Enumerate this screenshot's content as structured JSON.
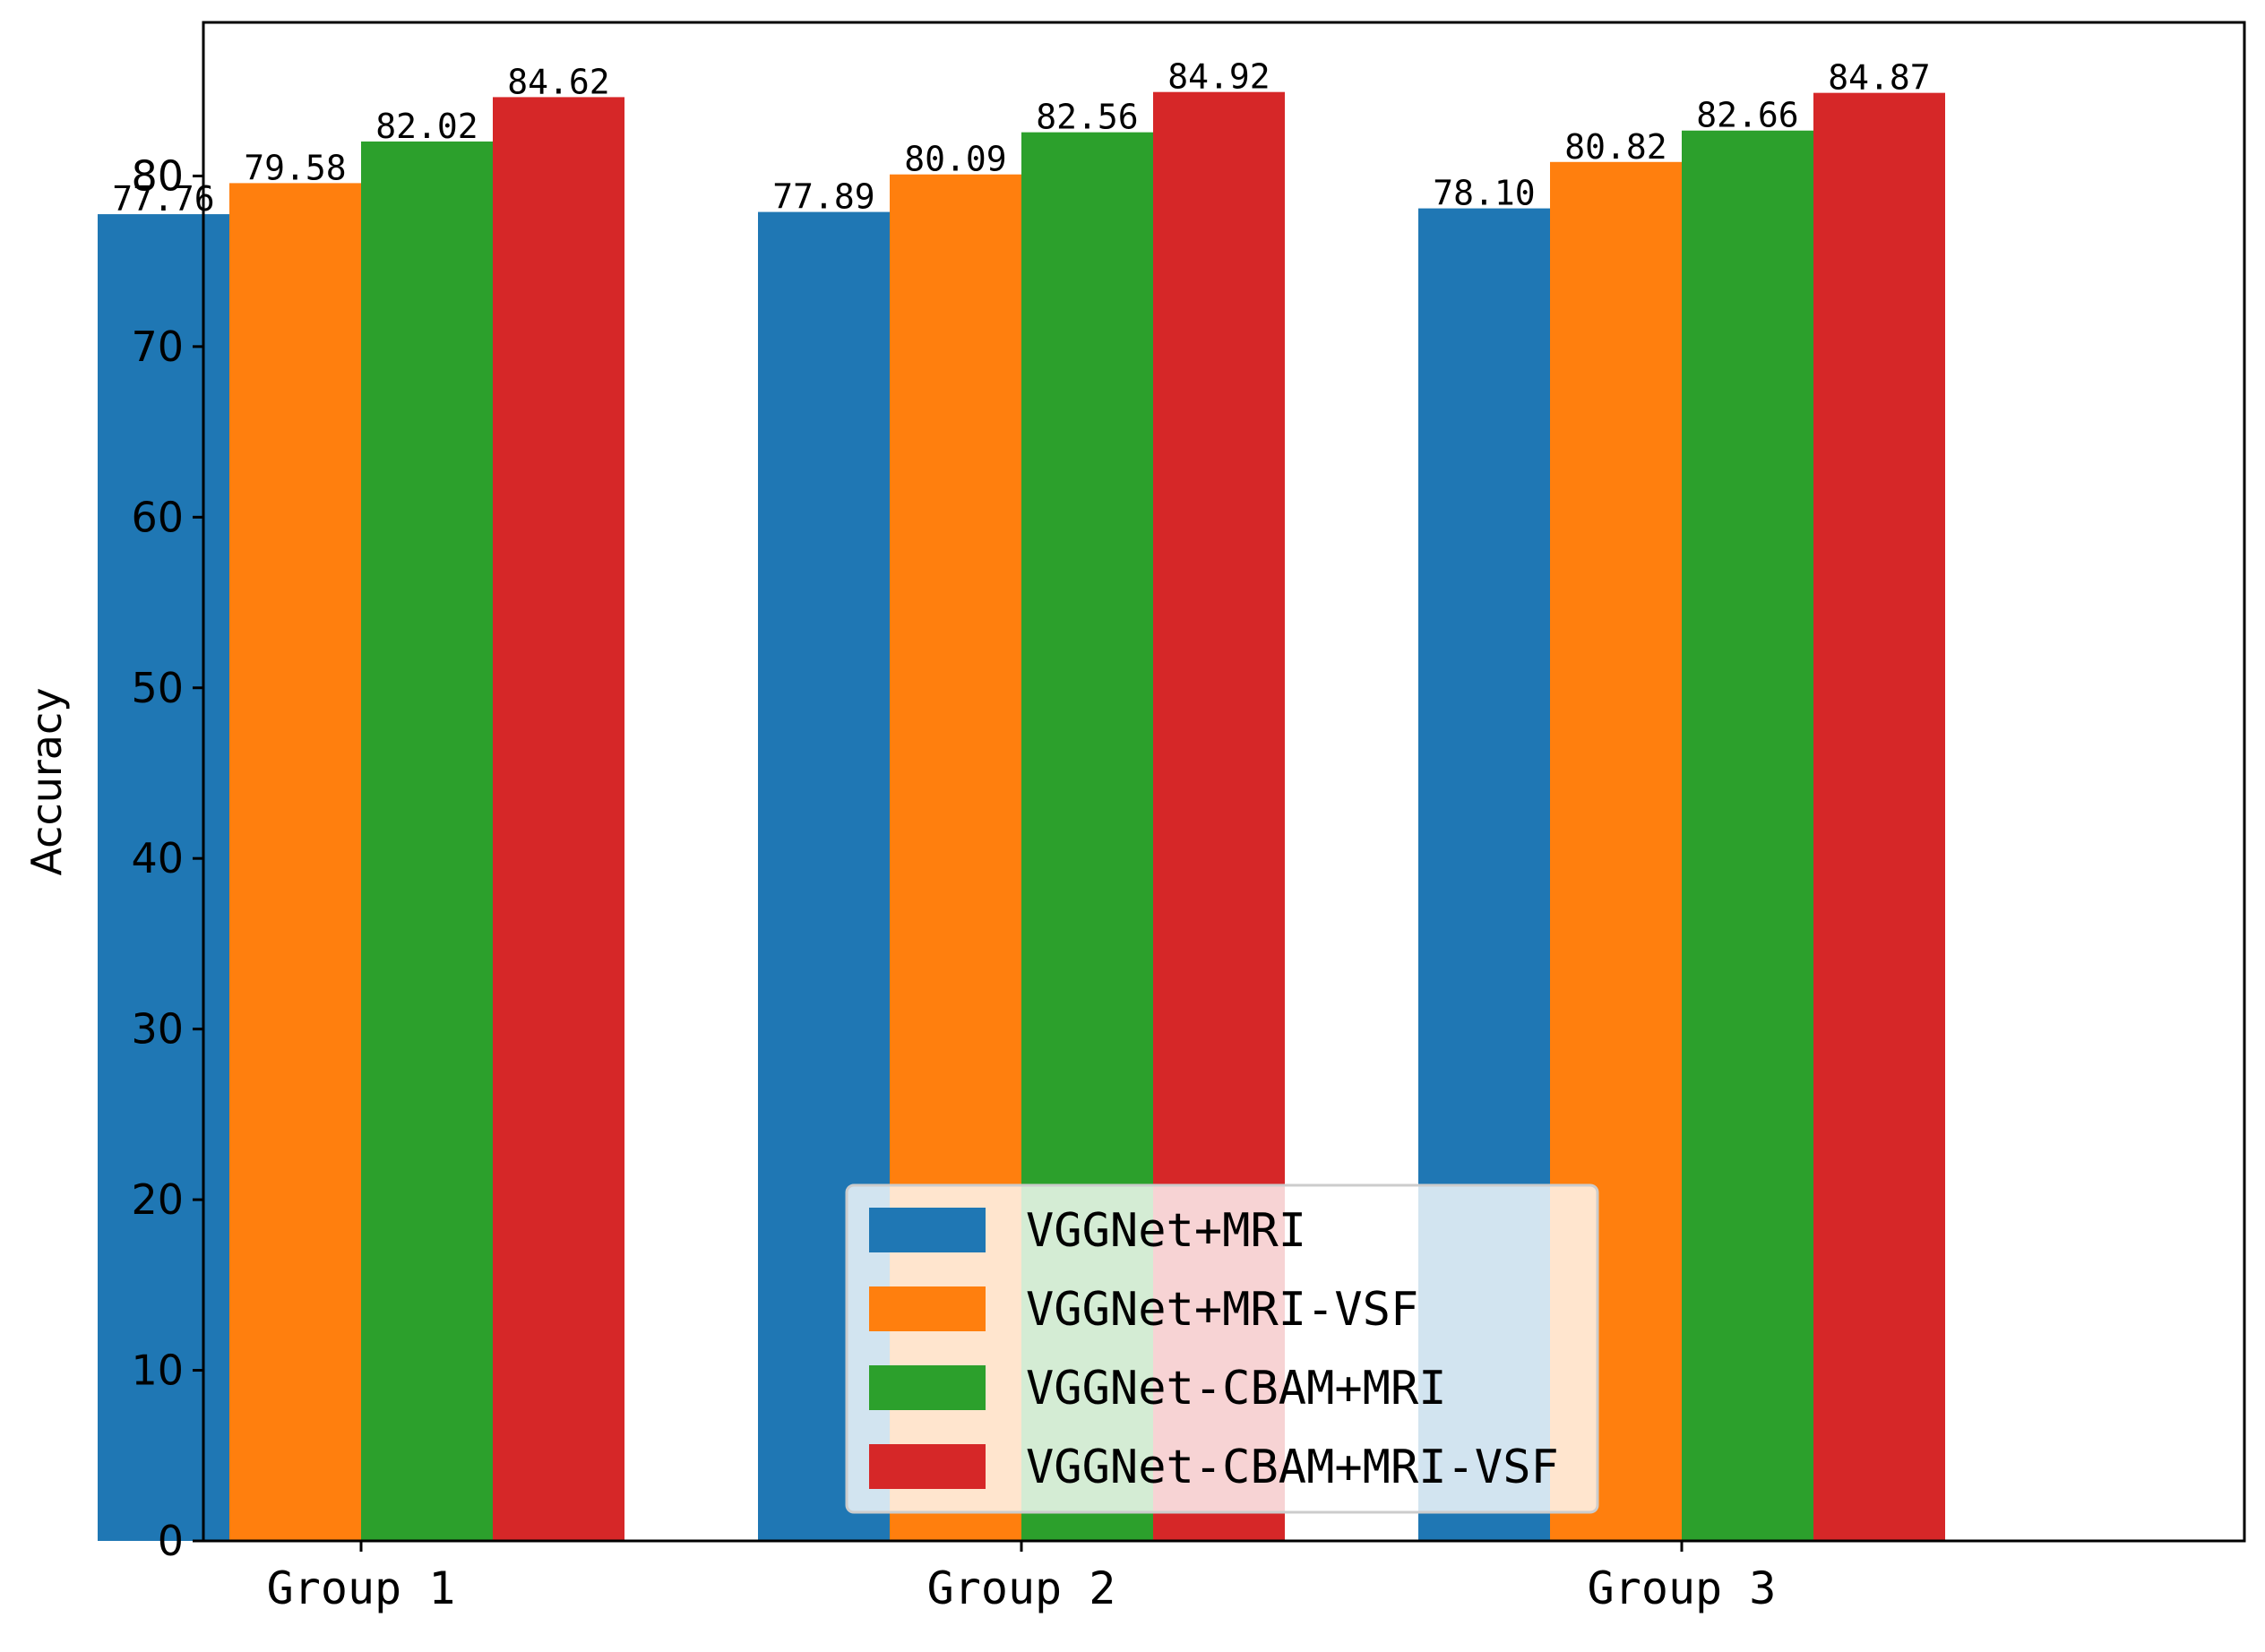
{
  "chart_data": {
    "type": "bar",
    "title": "",
    "xlabel": "",
    "ylabel": "Accuracy",
    "ylim": [
      0,
      89
    ],
    "yticks": [
      0,
      10,
      20,
      30,
      40,
      50,
      60,
      70,
      80
    ],
    "categories": [
      "Group 1",
      "Group 2",
      "Group 3"
    ],
    "series": [
      {
        "name": "VGGNet+MRI",
        "color": "#1f77b4",
        "values": [
          77.76,
          77.89,
          78.1
        ],
        "labels": [
          "77.76",
          "77.89",
          "78.10"
        ]
      },
      {
        "name": "VGGNet+MRI-VSF",
        "color": "#ff7f0e",
        "values": [
          79.58,
          80.09,
          80.82
        ],
        "labels": [
          "79.58",
          "80.09",
          "80.82"
        ]
      },
      {
        "name": "VGGNet-CBAM+MRI",
        "color": "#2ca02c",
        "values": [
          82.02,
          82.56,
          82.66
        ],
        "labels": [
          "82.02",
          "82.56",
          "82.66"
        ]
      },
      {
        "name": "VGGNet-CBAM+MRI-VSF",
        "color": "#d62728",
        "values": [
          84.62,
          84.92,
          84.87
        ],
        "labels": [
          "84.62",
          "84.92",
          "84.87"
        ]
      }
    ],
    "legend_position": "lower-center",
    "grid": false
  }
}
